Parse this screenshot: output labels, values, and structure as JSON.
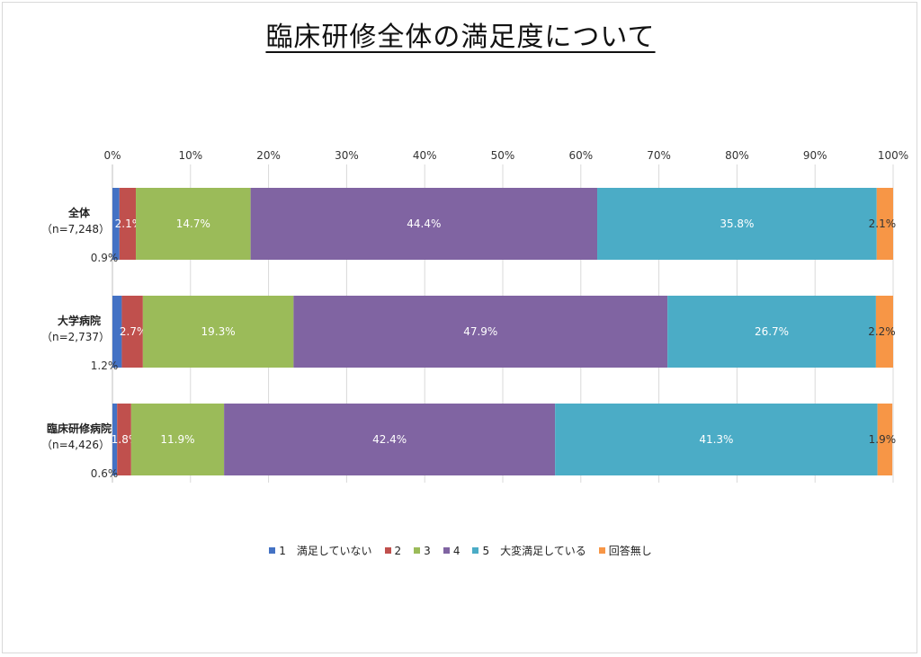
{
  "title": "臨床研修全体の満足度について",
  "chart_data": {
    "type": "bar",
    "orientation": "horizontal",
    "stacked": true,
    "percent_stacked": true,
    "xlim": [
      0,
      100
    ],
    "x_ticks": [
      "0%",
      "10%",
      "20%",
      "30%",
      "40%",
      "50%",
      "60%",
      "70%",
      "80%",
      "90%",
      "100%"
    ],
    "grid": true,
    "legend_position": "bottom",
    "categories": [
      {
        "name": "全体",
        "sub": "（n=7,248）"
      },
      {
        "name": "大学病院",
        "sub": "（n=2,737）"
      },
      {
        "name": "臨床研修病院",
        "sub": "（n=4,426）"
      }
    ],
    "series": [
      {
        "name": "1　満足していない",
        "color": "#4472C4",
        "values": [
          0.9,
          1.2,
          0.6
        ],
        "labels": [
          "0.9%",
          "1.2%",
          "0.6%"
        ]
      },
      {
        "name": "2",
        "color": "#C0504D",
        "values": [
          2.1,
          2.7,
          1.8
        ],
        "labels": [
          "2.1%",
          "2.7%",
          "1.8%"
        ]
      },
      {
        "name": "3",
        "color": "#9BBB59",
        "values": [
          14.7,
          19.3,
          11.9
        ],
        "labels": [
          "14.7%",
          "19.3%",
          "11.9%"
        ]
      },
      {
        "name": "4",
        "color": "#8064A2",
        "values": [
          44.4,
          47.9,
          42.4
        ],
        "labels": [
          "44.4%",
          "47.9%",
          "42.4%"
        ]
      },
      {
        "name": "5　大変満足している",
        "color": "#4BACC6",
        "values": [
          35.8,
          26.7,
          41.3
        ],
        "labels": [
          "35.8%",
          "26.7%",
          "41.3%"
        ]
      },
      {
        "name": "回答無し",
        "color": "#F79646",
        "values": [
          2.1,
          2.2,
          1.9
        ],
        "labels": [
          "2.1%",
          "2.2%",
          "1.9%"
        ]
      }
    ]
  }
}
